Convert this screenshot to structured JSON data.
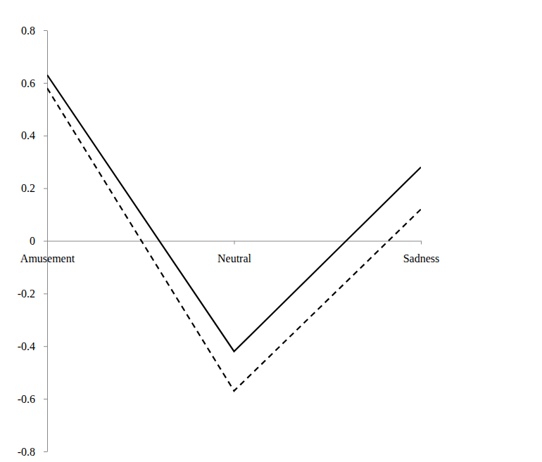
{
  "chart_data": {
    "type": "line",
    "categories": [
      "Amusement",
      "Neutral",
      "Sadness"
    ],
    "series": [
      {
        "color": "#000000",
        "line_style": "solid",
        "values": [
          0.63,
          -0.42,
          0.28
        ]
      },
      {
        "color": "#000000",
        "line_style": "dashed",
        "values": [
          0.58,
          -0.57,
          0.12
        ]
      }
    ],
    "ylim": [
      -0.8,
      0.8
    ],
    "yticks": [
      -0.8,
      -0.6,
      -0.4,
      -0.2,
      0,
      0.2,
      0.4,
      0.6,
      0.8
    ]
  }
}
